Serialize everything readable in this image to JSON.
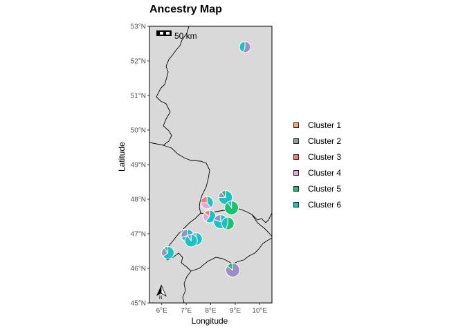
{
  "title": "Ancestry Map",
  "axes": {
    "xlabel": "Longitude",
    "ylabel": "Latitude",
    "x_ticks": [
      "6°E",
      "7°E",
      "8°E",
      "9°E",
      "10°E"
    ],
    "y_ticks": [
      "53°N",
      "52°N",
      "51°N",
      "50°N",
      "49°N",
      "48°N",
      "47°N",
      "46°N",
      "45°N"
    ]
  },
  "scale_bar": {
    "label": "50 km"
  },
  "north_arrow": {
    "label": "N"
  },
  "legend": [
    {
      "label": "Cluster 1",
      "color": "#F8A07E"
    },
    {
      "label": "Cluster 2",
      "color": "#8DA0A0"
    },
    {
      "label": "Cluster 3",
      "color": "#F28072"
    },
    {
      "label": "Cluster 4",
      "color": "#E5A8D2"
    },
    {
      "label": "Cluster 5",
      "color": "#1DC06E"
    },
    {
      "label": "Cluster 6",
      "color": "#20BFC4"
    }
  ],
  "colors": {
    "panel_bg": "#d9d9d9",
    "cluster_purple": "#9B8FC2"
  },
  "chart_data": {
    "type": "pie-map",
    "xlim": [
      5.5,
      10.5
    ],
    "ylim": [
      45,
      53
    ],
    "points": [
      {
        "lon": 9.4,
        "lat": 52.4,
        "r": 8,
        "slices": [
          [
            "#9B8FC2",
            0.55
          ],
          [
            "#20BFC4",
            0.45
          ]
        ]
      },
      {
        "lon": 8.6,
        "lat": 48.05,
        "r": 10,
        "slices": [
          [
            "#20BFC4",
            0.75
          ],
          [
            "#9B8FC2",
            0.15
          ],
          [
            "#1DC06E",
            0.1
          ]
        ]
      },
      {
        "lon": 7.85,
        "lat": 47.9,
        "r": 9,
        "slices": [
          [
            "#20BFC4",
            0.4
          ],
          [
            "#E5A8D2",
            0.35
          ],
          [
            "#F28072",
            0.25
          ]
        ]
      },
      {
        "lon": 8.85,
        "lat": 47.75,
        "r": 10,
        "slices": [
          [
            "#1DC06E",
            0.9
          ],
          [
            "#20BFC4",
            0.1
          ]
        ]
      },
      {
        "lon": 7.95,
        "lat": 47.5,
        "r": 9,
        "slices": [
          [
            "#20BFC4",
            0.6
          ],
          [
            "#E5A8D2",
            0.25
          ],
          [
            "#F28072",
            0.15
          ]
        ]
      },
      {
        "lon": 8.4,
        "lat": 47.35,
        "r": 10,
        "slices": [
          [
            "#20BFC4",
            0.8
          ],
          [
            "#9B8FC2",
            0.2
          ]
        ]
      },
      {
        "lon": 8.7,
        "lat": 47.3,
        "r": 9,
        "slices": [
          [
            "#1DC06E",
            0.55
          ],
          [
            "#20BFC4",
            0.45
          ]
        ]
      },
      {
        "lon": 6.9,
        "lat": 47.05,
        "r": 4,
        "slices": [
          [
            "#F8A07E",
            0.6
          ],
          [
            "#1DC06E",
            0.4
          ]
        ]
      },
      {
        "lon": 7.05,
        "lat": 46.95,
        "r": 9,
        "slices": [
          [
            "#20BFC4",
            0.7
          ],
          [
            "#9B8FC2",
            0.3
          ]
        ]
      },
      {
        "lon": 7.4,
        "lat": 46.85,
        "r": 9,
        "slices": [
          [
            "#20BFC4",
            0.85
          ],
          [
            "#9B8FC2",
            0.15
          ]
        ]
      },
      {
        "lon": 7.2,
        "lat": 46.8,
        "r": 9,
        "slices": [
          [
            "#20BFC4",
            0.9
          ],
          [
            "#9B8FC2",
            0.1
          ]
        ]
      },
      {
        "lon": 6.25,
        "lat": 46.45,
        "r": 9,
        "slices": [
          [
            "#20BFC4",
            0.65
          ],
          [
            "#9B8FC2",
            0.25
          ],
          [
            "#1DC06E",
            0.1
          ]
        ]
      },
      {
        "lon": 8.9,
        "lat": 45.95,
        "r": 10,
        "slices": [
          [
            "#9B8FC2",
            0.85
          ],
          [
            "#1DC06E",
            0.15
          ]
        ]
      }
    ]
  }
}
